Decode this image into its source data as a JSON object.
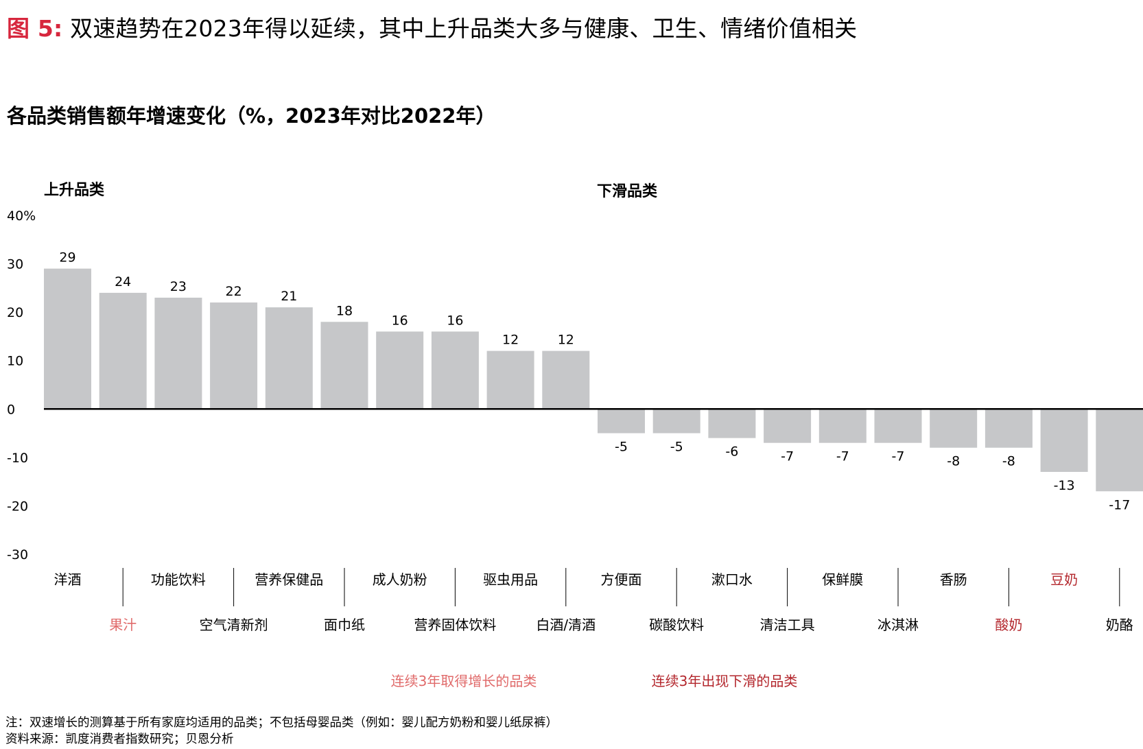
{
  "figure": {
    "label": "图 5:",
    "title": "双速趋势在2023年得以延续，其中上升品类大多与健康、卫生、情绪价值相关"
  },
  "colors": {
    "bar": "#c6c7c9",
    "accent_red": "#d7263d",
    "dark_red": "#b3262c",
    "light_red": "#e06a6a",
    "axis": "#000000"
  },
  "chart_data": {
    "type": "bar",
    "title": "各品类销售额年增速变化（%，2023年对比2022年）",
    "group_labels": {
      "rising": "上升品类",
      "declining": "下滑品类"
    },
    "ylim": [
      -30,
      40
    ],
    "y_ticks": [
      {
        "value": 40,
        "label": "40%"
      },
      {
        "value": 30,
        "label": "30"
      },
      {
        "value": 20,
        "label": "20"
      },
      {
        "value": 10,
        "label": "10"
      },
      {
        "value": 0,
        "label": "0"
      },
      {
        "value": -10,
        "label": "-10"
      },
      {
        "value": -20,
        "label": "-20"
      },
      {
        "value": -30,
        "label": "-30"
      }
    ],
    "categories": [
      {
        "name": "洋酒",
        "value": 29,
        "label_color": "#000000"
      },
      {
        "name": "果汁",
        "value": 24,
        "label_color": "#e06a6a"
      },
      {
        "name": "功能饮料",
        "value": 23,
        "label_color": "#000000"
      },
      {
        "name": "空气清新剂",
        "value": 22,
        "label_color": "#000000"
      },
      {
        "name": "营养保健品",
        "value": 21,
        "label_color": "#000000"
      },
      {
        "name": "面巾纸",
        "value": 18,
        "label_color": "#000000"
      },
      {
        "name": "成人奶粉",
        "value": 16,
        "label_color": "#000000"
      },
      {
        "name": "营养固体饮料",
        "value": 16,
        "label_color": "#000000"
      },
      {
        "name": "驱虫用品",
        "value": 12,
        "label_color": "#000000"
      },
      {
        "name": "白酒/清酒",
        "value": 12,
        "label_color": "#000000"
      },
      {
        "name": "方便面",
        "value": -5,
        "label_color": "#000000"
      },
      {
        "name": "碳酸饮料",
        "value": -5,
        "label_color": "#000000"
      },
      {
        "name": "漱口水",
        "value": -6,
        "label_color": "#000000"
      },
      {
        "name": "清洁工具",
        "value": -7,
        "label_color": "#000000"
      },
      {
        "name": "保鲜膜",
        "value": -7,
        "label_color": "#000000"
      },
      {
        "name": "冰淇淋",
        "value": -7,
        "label_color": "#000000"
      },
      {
        "name": "香肠",
        "value": -8,
        "label_color": "#000000"
      },
      {
        "name": "酸奶",
        "value": -8,
        "label_color": "#b3262c"
      },
      {
        "name": "豆奶",
        "value": -13,
        "label_color": "#b3262c"
      },
      {
        "name": "奶酪",
        "value": -17,
        "label_color": "#000000"
      }
    ],
    "legend": [
      {
        "text": "连续3年取得增长的品类",
        "color": "#e06a6a"
      },
      {
        "text": "连续3年出现下滑的品类",
        "color": "#b3262c"
      }
    ],
    "grid": false
  },
  "footnotes": {
    "note": "注：双速增长的测算基于所有家庭均适用的品类；不包括母婴品类（例如：婴儿配方奶粉和婴儿纸尿裤）",
    "source": "资料来源：凯度消费者指数研究；贝恩分析"
  }
}
